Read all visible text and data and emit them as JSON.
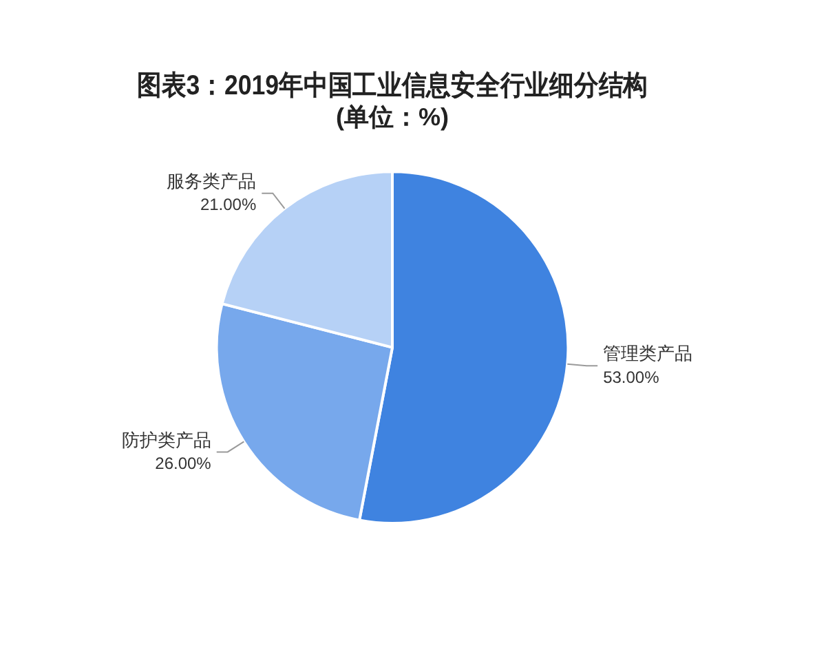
{
  "chart_data": {
    "type": "pie",
    "title": "图表3：2019年中国工业信息安全行业细分结构",
    "subtitle": "(单位：%)",
    "categories": [
      "管理类产品",
      "防护类产品",
      "服务类产品"
    ],
    "values": [
      53,
      26,
      21
    ],
    "colors": [
      "#3f83e0",
      "#77a8ec",
      "#b6d1f6"
    ],
    "value_labels": [
      "53.00%",
      "26.00%",
      "21.00%"
    ]
  }
}
